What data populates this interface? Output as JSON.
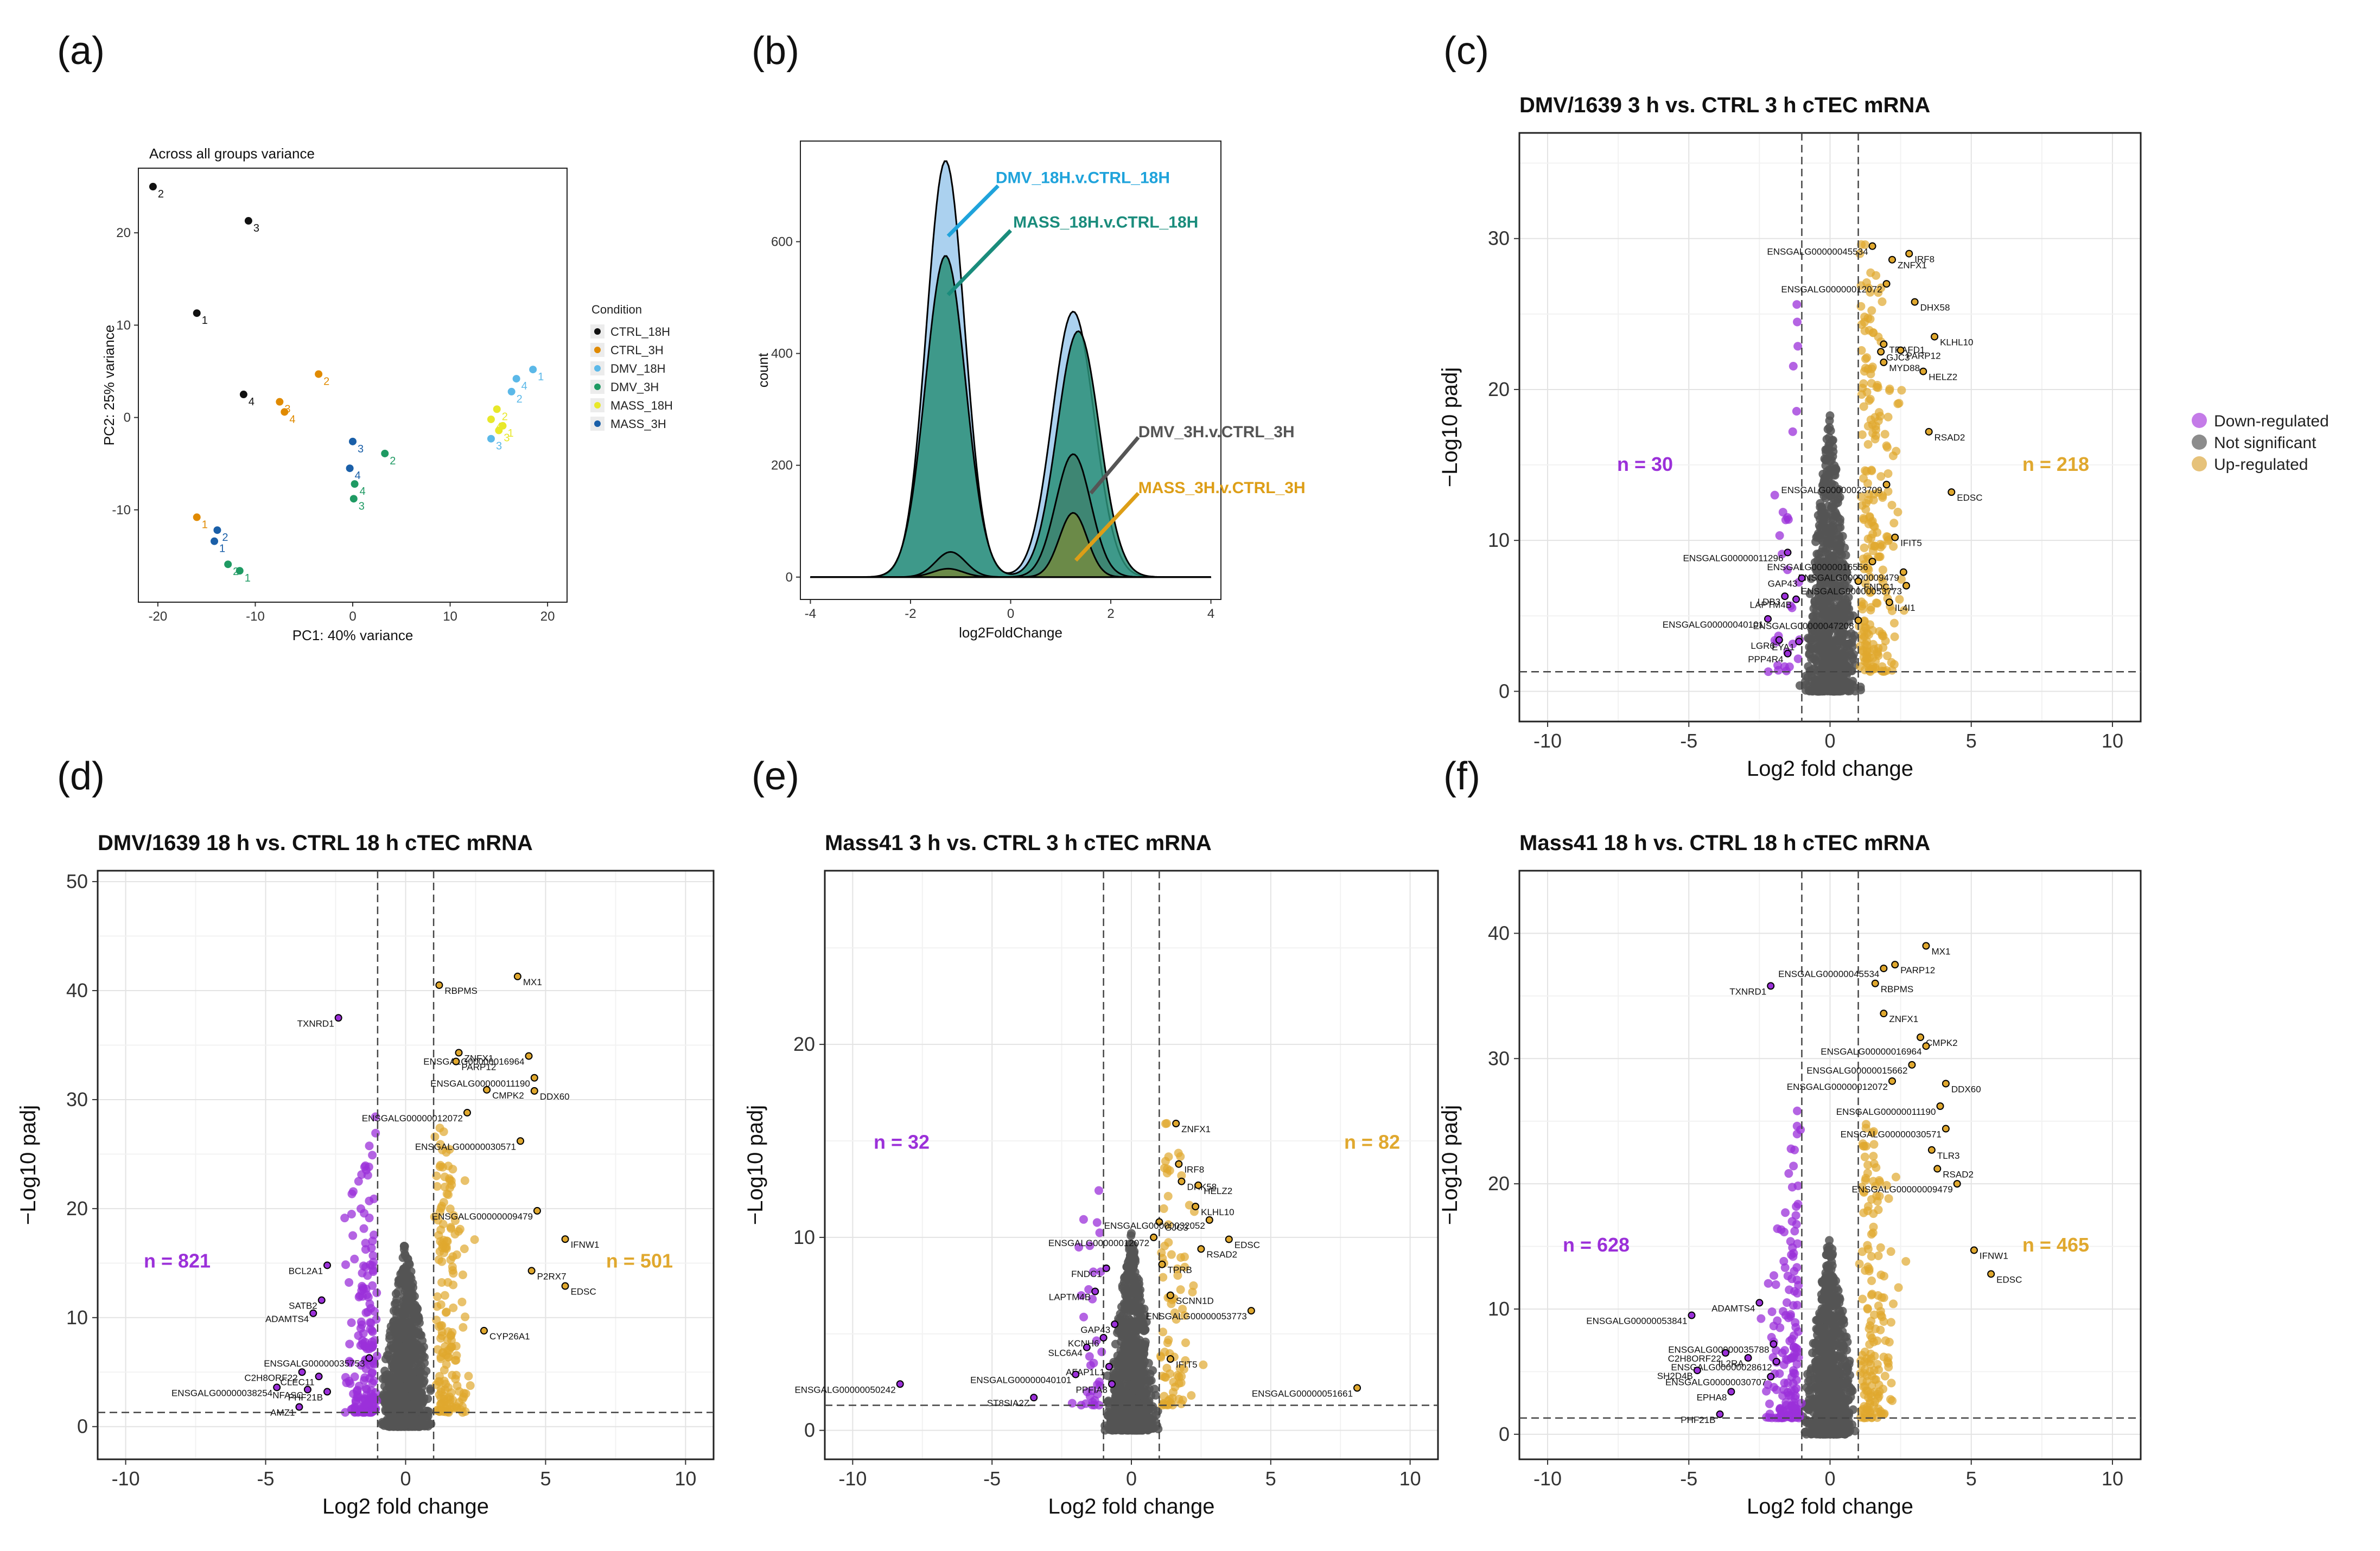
{
  "colors": {
    "down": "#9B30D9",
    "ns": "#555555",
    "up": "#E0A82E",
    "down_legend": "#C47BE8",
    "ns_legend": "#8C8C8C",
    "up_legend": "#E6C27A",
    "dmv18": "#1FA3DB",
    "mass18": "#1A8C7C",
    "dmv3": "#555555",
    "mass3": "#DD9E17"
  },
  "legend_volcano": {
    "items": [
      "Down-regulated",
      "Not significant",
      "Up-regulated"
    ]
  },
  "panels": {
    "a": {
      "letter": "(a)"
    },
    "b": {
      "letter": "(b)"
    },
    "c": {
      "letter": "(c)"
    },
    "d": {
      "letter": "(d)"
    },
    "e": {
      "letter": "(e)"
    },
    "f": {
      "letter": "(f)"
    }
  },
  "chart_data": [
    {
      "id": "a",
      "type": "scatter",
      "title": "Across all groups variance",
      "xlabel": "PC1: 40% variance",
      "ylabel": "PC2: 25% variance",
      "xlim": [
        -22,
        22
      ],
      "ylim": [
        -20,
        27
      ],
      "xticks": [
        -20,
        -10,
        0,
        10,
        20
      ],
      "yticks": [
        -10,
        0,
        10,
        20
      ],
      "legend_title": "Condition",
      "groups": [
        {
          "name": "CTRL_18H",
          "color": "#111111",
          "points": [
            [
              -20.5,
              25,
              "2"
            ],
            [
              -10.7,
              21.3,
              "3"
            ],
            [
              -16,
              11.3,
              "1"
            ],
            [
              -11.2,
              2.5,
              "4"
            ]
          ]
        },
        {
          "name": "CTRL_3H",
          "color": "#E08A00",
          "points": [
            [
              -3.5,
              4.7,
              "2"
            ],
            [
              -7.5,
              1.7,
              "3"
            ],
            [
              -7,
              0.6,
              "4"
            ],
            [
              -16,
              -10.8,
              "1"
            ]
          ]
        },
        {
          "name": "DMV_18H",
          "color": "#5BB8E8",
          "points": [
            [
              18.5,
              5.2,
              "1"
            ],
            [
              16.8,
              4.2,
              "4"
            ],
            [
              16.3,
              2.8,
              "2"
            ],
            [
              14.2,
              -2.3,
              "3"
            ]
          ]
        },
        {
          "name": "DMV_3H",
          "color": "#1F9A63",
          "points": [
            [
              3.3,
              -3.9,
              "2"
            ],
            [
              0.2,
              -7.2,
              "4"
            ],
            [
              0.1,
              -8.8,
              "3"
            ],
            [
              -12.8,
              -15.9,
              "2"
            ],
            [
              -11.6,
              -16.6,
              "1"
            ]
          ]
        },
        {
          "name": "MASS_18H",
          "color": "#E8E82A",
          "points": [
            [
              14.8,
              0.9,
              "2"
            ],
            [
              14.2,
              -0.2,
              "4"
            ],
            [
              15.4,
              -0.9,
              "1"
            ],
            [
              15.0,
              -1.4,
              "3"
            ]
          ]
        },
        {
          "name": "MASS_3H",
          "color": "#1A5FA8",
          "points": [
            [
              0,
              -2.6,
              "3"
            ],
            [
              -0.3,
              -5.5,
              "4"
            ],
            [
              -13.9,
              -12.2,
              "2"
            ],
            [
              -14.2,
              -13.4,
              "1"
            ]
          ]
        }
      ]
    },
    {
      "id": "b",
      "type": "area",
      "title": "",
      "xlabel": "log2FoldChange",
      "ylabel": "count",
      "xlim": [
        -4.2,
        4.2
      ],
      "ylim": [
        -40,
        780
      ],
      "xticks": [
        -4,
        -2,
        0,
        2,
        4
      ],
      "yticks": [
        0,
        200,
        400,
        600
      ],
      "series": [
        {
          "name": "DMV_18H.v.CTRL_18H",
          "peaks": [
            [
              -1.3,
              745,
              0.38
            ],
            [
              1.25,
              475,
              0.42
            ]
          ]
        },
        {
          "name": "MASS_18H.v.CTRL_18H",
          "peaks": [
            [
              -1.3,
              575,
              0.4
            ],
            [
              1.35,
              440,
              0.42
            ]
          ]
        },
        {
          "name": "DMV_3H.v.CTRL_3H",
          "peaks": [
            [
              -1.2,
              45,
              0.3
            ],
            [
              1.25,
              220,
              0.35
            ]
          ]
        },
        {
          "name": "MASS_3H.v.CTRL_3H",
          "peaks": [
            [
              -1.25,
              15,
              0.3
            ],
            [
              1.25,
              115,
              0.28
            ]
          ]
        }
      ],
      "annotations": [
        "DMV_18H.v.CTRL_18H",
        "MASS_18H.v.CTRL_18H",
        "DMV_3H.v.CTRL_3H",
        "MASS_3H.v.CTRL_3H"
      ]
    },
    {
      "id": "c",
      "type": "scatter",
      "title": "DMV/1639 3 h vs. CTRL 3 h cTEC mRNA",
      "xlabel": "Log2 fold change",
      "ylabel": "−Log10 padj",
      "xlim": [
        -11,
        11
      ],
      "ylim": [
        -2,
        37
      ],
      "xticks": [
        -10,
        -5,
        0,
        5,
        10
      ],
      "yticks": [
        0,
        10,
        20,
        30
      ],
      "n_down": "n = 30",
      "n_up": "n = 218",
      "thresholds": {
        "fc": 1,
        "padj": 1.3
      },
      "max_sig": 30,
      "n_down_pts": 30,
      "n_up_pts": 218,
      "labels": [
        [
          "ENSGALG00000045534",
          1.5,
          29.5
        ],
        [
          "IRF8",
          2.8,
          29.0
        ],
        [
          "ZNFX1",
          2.2,
          28.6
        ],
        [
          "ENSGALG00000012072",
          2.0,
          27.0
        ],
        [
          "DHX58",
          3.0,
          25.8
        ],
        [
          "KLHL10",
          3.7,
          23.5
        ],
        [
          "TRAFD1",
          1.9,
          23.0
        ],
        [
          "GJC3",
          1.8,
          22.5
        ],
        [
          "PARP12",
          2.5,
          22.6
        ],
        [
          "HELZ2",
          3.3,
          21.2
        ],
        [
          "MYD88",
          1.9,
          21.8
        ],
        [
          "RSAD2",
          3.5,
          17.2
        ],
        [
          "ENSGALG00000023709",
          2.0,
          13.7
        ],
        [
          "EDSC",
          4.3,
          13.2
        ],
        [
          "IFIT5",
          2.3,
          10.2
        ],
        [
          "ENSGALG00000011296",
          -1.5,
          9.2
        ],
        [
          "ENSGALG00000016556",
          1.5,
          8.6
        ],
        [
          "ENSGALG00000009479",
          2.6,
          7.9
        ],
        [
          "GAP43",
          -1.0,
          7.5
        ],
        [
          "FNDC1",
          1.0,
          7.3
        ],
        [
          "ENSGALG00000053773",
          2.7,
          7.0
        ],
        [
          "LDB3",
          -1.6,
          6.3
        ],
        [
          "LAPTM4B",
          -1.2,
          6.1
        ],
        [
          "IL4I1",
          2.1,
          5.9
        ],
        [
          "ENSGALG00000040101",
          -2.2,
          4.8
        ],
        [
          "ENSGALG00000047208",
          1.0,
          4.7
        ],
        [
          "LGR6",
          -1.8,
          3.4
        ],
        [
          "EYA1",
          -1.1,
          3.3
        ],
        [
          "PPP4R4",
          -1.5,
          2.5
        ]
      ]
    },
    {
      "id": "d",
      "type": "scatter",
      "title": "DMV/1639 18 h vs. CTRL 18 h cTEC mRNA",
      "xlabel": "Log2 fold change",
      "ylabel": "−Log10 padj",
      "xlim": [
        -11,
        11
      ],
      "ylim": [
        -3,
        51
      ],
      "xticks": [
        -10,
        -5,
        0,
        5,
        10
      ],
      "yticks": [
        0,
        10,
        20,
        30,
        40,
        50
      ],
      "n_down": "n = 821",
      "n_up": "n = 501",
      "thresholds": {
        "fc": 1,
        "padj": 1.3
      },
      "max_sig": 28,
      "n_down_pts": 180,
      "n_up_pts": 170,
      "labels": [
        [
          "RBPMS",
          1.2,
          40.5
        ],
        [
          "MX1",
          4.0,
          41.3
        ],
        [
          "TXNRD1",
          -2.4,
          37.5
        ],
        [
          "ZNFX1",
          1.9,
          34.3
        ],
        [
          "ENSGALG00000016964",
          4.4,
          34.0
        ],
        [
          "PARP12",
          1.8,
          33.5
        ],
        [
          "ENSGALG00000011190",
          4.6,
          32.0
        ],
        [
          "CMPK2",
          2.9,
          30.9
        ],
        [
          "DDX60",
          4.6,
          30.8
        ],
        [
          "ENSGALG00000012072",
          2.2,
          28.8
        ],
        [
          "ENSGALG00000030571",
          4.1,
          26.2
        ],
        [
          "ENSGALG00000009479",
          4.7,
          19.8
        ],
        [
          "IFNW1",
          5.7,
          17.2
        ],
        [
          "BCL2A1",
          -2.8,
          14.8
        ],
        [
          "P2RX7",
          4.5,
          14.3
        ],
        [
          "EDSC",
          5.7,
          12.9
        ],
        [
          "SATB2",
          -3.0,
          11.6
        ],
        [
          "ADAMTS4",
          -3.3,
          10.4
        ],
        [
          "CYP26A1",
          2.8,
          8.8
        ],
        [
          "ENSGALG00000035753",
          -1.3,
          6.3
        ],
        [
          "C2H8ORF22",
          -3.7,
          5.0
        ],
        [
          "CLEC11",
          -3.1,
          4.6
        ],
        [
          "ENSGALG00000038254",
          -4.6,
          3.6
        ],
        [
          "NFASC",
          -3.5,
          3.4
        ],
        [
          "PHF21B",
          -2.8,
          3.2
        ],
        [
          "AMZ1",
          -3.8,
          1.8
        ]
      ]
    },
    {
      "id": "e",
      "type": "scatter",
      "title": "Mass41 3 h vs. CTRL 3 h cTEC mRNA",
      "xlabel": "Log2 fold change",
      "ylabel": "−Log10 padj",
      "xlim": [
        -11,
        11
      ],
      "ylim": [
        -1.5,
        29
      ],
      "xticks": [
        -10,
        -5,
        0,
        5,
        10
      ],
      "yticks": [
        0,
        10,
        20
      ],
      "n_down": "n = 32",
      "n_up": "n = 82",
      "thresholds": {
        "fc": 1,
        "padj": 1.3
      },
      "max_sig": 15.5,
      "n_down_pts": 32,
      "n_up_pts": 82,
      "labels": [
        [
          "ZNFX1",
          1.6,
          15.9
        ],
        [
          "IRF8",
          1.7,
          13.8
        ],
        [
          "DHK58",
          1.8,
          12.9
        ],
        [
          "HELZ2",
          2.4,
          12.7
        ],
        [
          "KLHL10",
          2.3,
          11.6
        ],
        [
          "GJC3",
          1.0,
          10.8
        ],
        [
          "ENSGALG00000032052",
          2.8,
          10.9
        ],
        [
          "ENSGALG00000012072",
          0.8,
          10.0
        ],
        [
          "EDSC",
          3.5,
          9.9
        ],
        [
          "RSAD2",
          2.5,
          9.4
        ],
        [
          "FNDC1",
          -0.9,
          8.4
        ],
        [
          "TPRB",
          1.1,
          8.6
        ],
        [
          "LAPTM4B",
          -1.3,
          7.2
        ],
        [
          "SCNN1D",
          1.4,
          7.0
        ],
        [
          "ENSGALG00000053773",
          4.3,
          6.2
        ],
        [
          "GAP43",
          -0.6,
          5.5
        ],
        [
          "KCNH6",
          -1.0,
          4.8
        ],
        [
          "SLC6A4",
          -1.6,
          4.3
        ],
        [
          "IFIT5",
          1.4,
          3.7
        ],
        [
          "AFAP1L1",
          -0.8,
          3.3
        ],
        [
          "ENSGALG00000040101",
          -2.0,
          2.9
        ],
        [
          "ENSGALG00000050242",
          -8.3,
          2.4
        ],
        [
          "ENSGALG00000051661",
          8.1,
          2.2
        ],
        [
          "PPFIA3",
          -0.7,
          2.4
        ],
        [
          "ST8SIA2Z",
          -3.5,
          1.7
        ]
      ]
    },
    {
      "id": "f",
      "type": "scatter",
      "title": "Mass41 18 h vs. CTRL 18 h cTEC mRNA",
      "xlabel": "Log2 fold change",
      "ylabel": "−Log10 padj",
      "xlim": [
        -11,
        11
      ],
      "ylim": [
        -2,
        45
      ],
      "xticks": [
        -10,
        -5,
        0,
        5,
        10
      ],
      "yticks": [
        0,
        10,
        20,
        30,
        40
      ],
      "n_down": "n = 628",
      "n_up": "n = 465",
      "thresholds": {
        "fc": 1,
        "padj": 1.3
      },
      "max_sig": 26,
      "n_down_pts": 160,
      "n_up_pts": 160,
      "labels": [
        [
          "MX1",
          3.4,
          39.0
        ],
        [
          "PARP12",
          2.3,
          37.5
        ],
        [
          "ENSGALG00000045534",
          1.9,
          37.2
        ],
        [
          "RBPMS",
          1.6,
          36.0
        ],
        [
          "TXNRD1",
          -2.1,
          35.8
        ],
        [
          "ZNFX1",
          1.9,
          33.6
        ],
        [
          "CMPK2",
          3.2,
          31.7
        ],
        [
          "ENSGALG00000016964",
          3.4,
          31.0
        ],
        [
          "ENSGALG00000015662",
          2.9,
          29.5
        ],
        [
          "ENSGALG00000012072",
          2.2,
          28.2
        ],
        [
          "DDX60",
          4.1,
          28.0
        ],
        [
          "ENSGALG00000011190",
          3.9,
          26.2
        ],
        [
          "ENSGALG00000030571",
          4.1,
          24.4
        ],
        [
          "TLR3",
          3.6,
          22.7
        ],
        [
          "RSAD2",
          3.8,
          21.2
        ],
        [
          "ENSGALG00000009479",
          4.5,
          20.0
        ],
        [
          "IFNW1",
          5.1,
          14.7
        ],
        [
          "EDSC",
          5.7,
          12.8
        ],
        [
          "ADAMTS4",
          -2.5,
          10.5
        ],
        [
          "ENSGALG00000053841",
          -4.9,
          9.5
        ],
        [
          "ENSGALG00000035788",
          -2.0,
          7.2
        ],
        [
          "C2H8ORF22",
          -3.7,
          6.5
        ],
        [
          "IL2RA",
          -2.9,
          6.1
        ],
        [
          "ENSGALG00000028612",
          -1.9,
          5.8
        ],
        [
          "SH2D4B",
          -4.7,
          5.1
        ],
        [
          "ENSGALG00000030707",
          -2.1,
          4.6
        ],
        [
          "EPHA8",
          -3.5,
          3.4
        ],
        [
          "PHF21B",
          -3.9,
          1.6
        ]
      ]
    }
  ]
}
